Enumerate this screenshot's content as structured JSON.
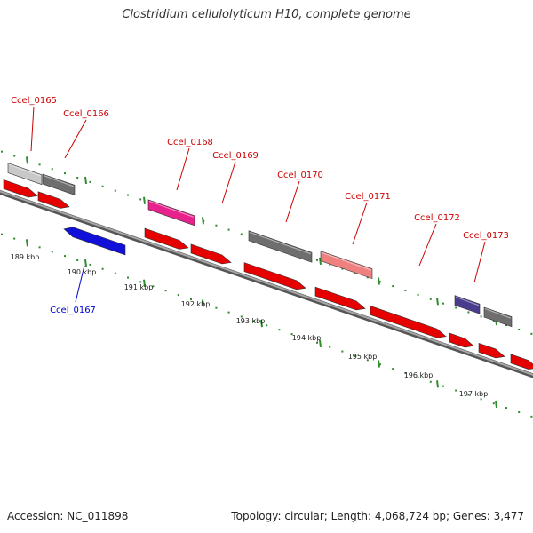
{
  "header": {
    "title": "Clostridium cellulolyticum H10, complete genome"
  },
  "footer": {
    "accession": "Accession: NC_011898",
    "summary": "Topology: circular; Length: 4,068,724 bp; Genes: 3,477"
  },
  "colors": {
    "backbone": "#8c8c8c",
    "tick": "#2e8b2e",
    "label_red": "#cc0000",
    "label_blue": "#0000cc",
    "cds": "#e60000"
  },
  "genes": [
    {
      "id": "Ccel_0165",
      "color": "#c8c8c8"
    },
    {
      "id": "Ccel_0166",
      "color": "#6e6e6e"
    },
    {
      "id": "Ccel_0167",
      "color": "#1010d8"
    },
    {
      "id": "Ccel_0168",
      "color": "#e8228c"
    },
    {
      "id": "Ccel_0169",
      "color": "#e60000"
    },
    {
      "id": "Ccel_0170",
      "color": "#6e6e6e"
    },
    {
      "id": "Ccel_0171",
      "color": "#ef8080"
    },
    {
      "id": "Ccel_0172",
      "color": "#e60000"
    },
    {
      "id": "Ccel_0173",
      "color": "#4a3c8c"
    }
  ],
  "kbp_labels": [
    "189 kbp",
    "190 kbp",
    "191 kbp",
    "192 kbp",
    "193 kbp",
    "194 kbp",
    "195 kbp",
    "196 kbp",
    "197 kbp"
  ]
}
